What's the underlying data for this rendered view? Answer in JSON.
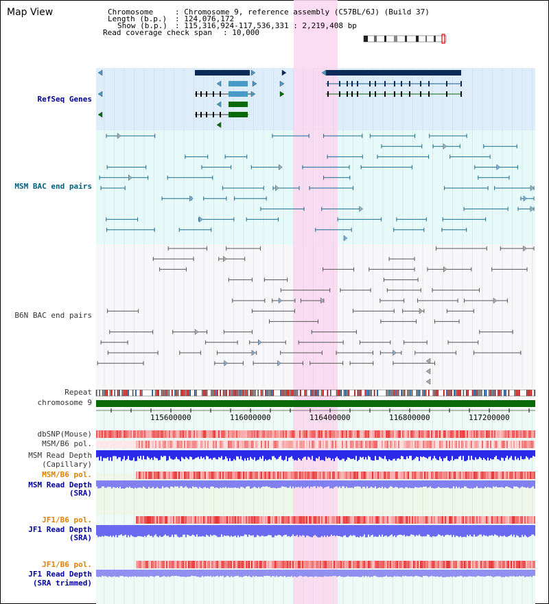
{
  "header": {
    "title": "Map View",
    "info": [
      {
        "key": "Chromosome",
        "sep": ":",
        "value": "Chromosome 9, reference assembly (C57BL/6J) (Build 37)"
      },
      {
        "key": "Length (b.p.)",
        "sep": ":",
        "value": "124,076,172"
      },
      {
        "key": "Show (b.p.)",
        "sep": ":",
        "value": "115,316,924-117,536,331 : 2,219,408 bp"
      },
      {
        "key": "Read coverage check span",
        "sep": ":",
        "value": "10,000"
      }
    ]
  },
  "tracks": {
    "refseq": "RefSeq Genes",
    "msm_bac": "MSM BAC end pairs",
    "b6n_bac": "B6N BAC end pairs",
    "repeat": "Repeat",
    "chromosome": "chromosome 9",
    "dbsnp": "dbSNP(Mouse)",
    "msm_b6_pol_1": "MSM/B6 pol.",
    "msm_read_depth_cap_1": "MSM Read Depth",
    "msm_read_depth_cap_2": "(Capillary)",
    "msm_b6_pol_2": "MSM/B6 pol.",
    "msm_read_depth_sra_1": "MSM Read Depth",
    "msm_read_depth_sra_2": "(SRA)",
    "jf1_b6_pol_1": "JF1/B6 pol.",
    "jf1_read_depth_sra_1": "JF1 Read Depth",
    "jf1_read_depth_sra_2": "(SRA)",
    "jf1_b6_pol_2": "JF1/B6 pol.",
    "jf1_read_depth_trim_1": "JF1 Read Depth",
    "jf1_read_depth_trim_2": "(SRA trimmed)"
  },
  "axis": {
    "ticks": [
      "115600000",
      "116000000",
      "116400000",
      "116800000",
      "117200000"
    ]
  },
  "colors": {
    "highlight": "#fbd6f0",
    "refseq_bg": "#ddeefa",
    "msm_bg": "#e6fafa",
    "b6n_bg": "#f7f7fa",
    "gene_dark": "#0a2a5a",
    "gene_light": "#4a9ac8",
    "gene_green": "#0a6a0a",
    "bac_teal": "#1a6a8a",
    "bac_gray": "#555555",
    "chrom_green": "#0a6a0a",
    "snp_red": "#f04848",
    "depth_blue": "#2a2ae8",
    "depth_light": "#8080f0"
  }
}
